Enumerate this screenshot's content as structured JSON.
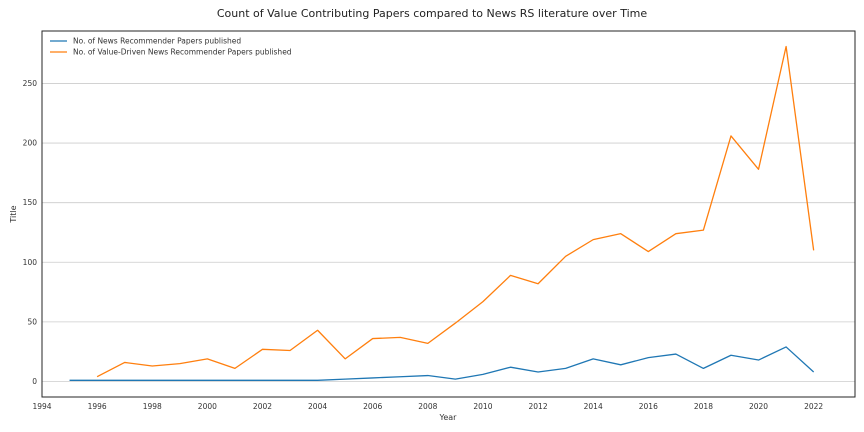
{
  "chart_data": {
    "type": "line",
    "title": "Count of Value Contributing Papers compared to News RS literature over Time",
    "xlabel": "Year",
    "ylabel": "Title",
    "xlim": [
      1994,
      2023.5
    ],
    "ylim": [
      -13,
      294
    ],
    "xticks": [
      1994,
      1996,
      1998,
      2000,
      2002,
      2004,
      2006,
      2008,
      2010,
      2012,
      2014,
      2016,
      2018,
      2020,
      2022
    ],
    "yticks": [
      0,
      50,
      100,
      150,
      200,
      250
    ],
    "grid": "horizontal",
    "legend_position": "top-left",
    "series": [
      {
        "name": "No. of News Recommender Papers published",
        "color": "#1f77b4",
        "x": [
          1995,
          1996,
          1997,
          1998,
          1999,
          2000,
          2001,
          2002,
          2003,
          2004,
          2005,
          2006,
          2007,
          2008,
          2009,
          2010,
          2011,
          2012,
          2013,
          2014,
          2015,
          2016,
          2017,
          2018,
          2019,
          2020,
          2021,
          2022
        ],
        "values": [
          1,
          1,
          1,
          1,
          1,
          1,
          1,
          1,
          1,
          1,
          2,
          3,
          4,
          5,
          2,
          6,
          12,
          8,
          11,
          19,
          14,
          20,
          23,
          11,
          22,
          18,
          29,
          8
        ]
      },
      {
        "name": "No. of Value-Driven News Recommender Papers published",
        "color": "#ff7f0e",
        "x": [
          1996,
          1997,
          1998,
          1999,
          2000,
          2001,
          2002,
          2003,
          2004,
          2005,
          2006,
          2007,
          2008,
          2009,
          2010,
          2011,
          2012,
          2013,
          2014,
          2015,
          2016,
          2017,
          2018,
          2019,
          2020,
          2021,
          2022
        ],
        "values": [
          4,
          16,
          13,
          15,
          19,
          11,
          27,
          26,
          43,
          19,
          36,
          37,
          32,
          49,
          67,
          89,
          82,
          105,
          119,
          124,
          109,
          124,
          127,
          206,
          178,
          281,
          110
        ]
      }
    ]
  }
}
